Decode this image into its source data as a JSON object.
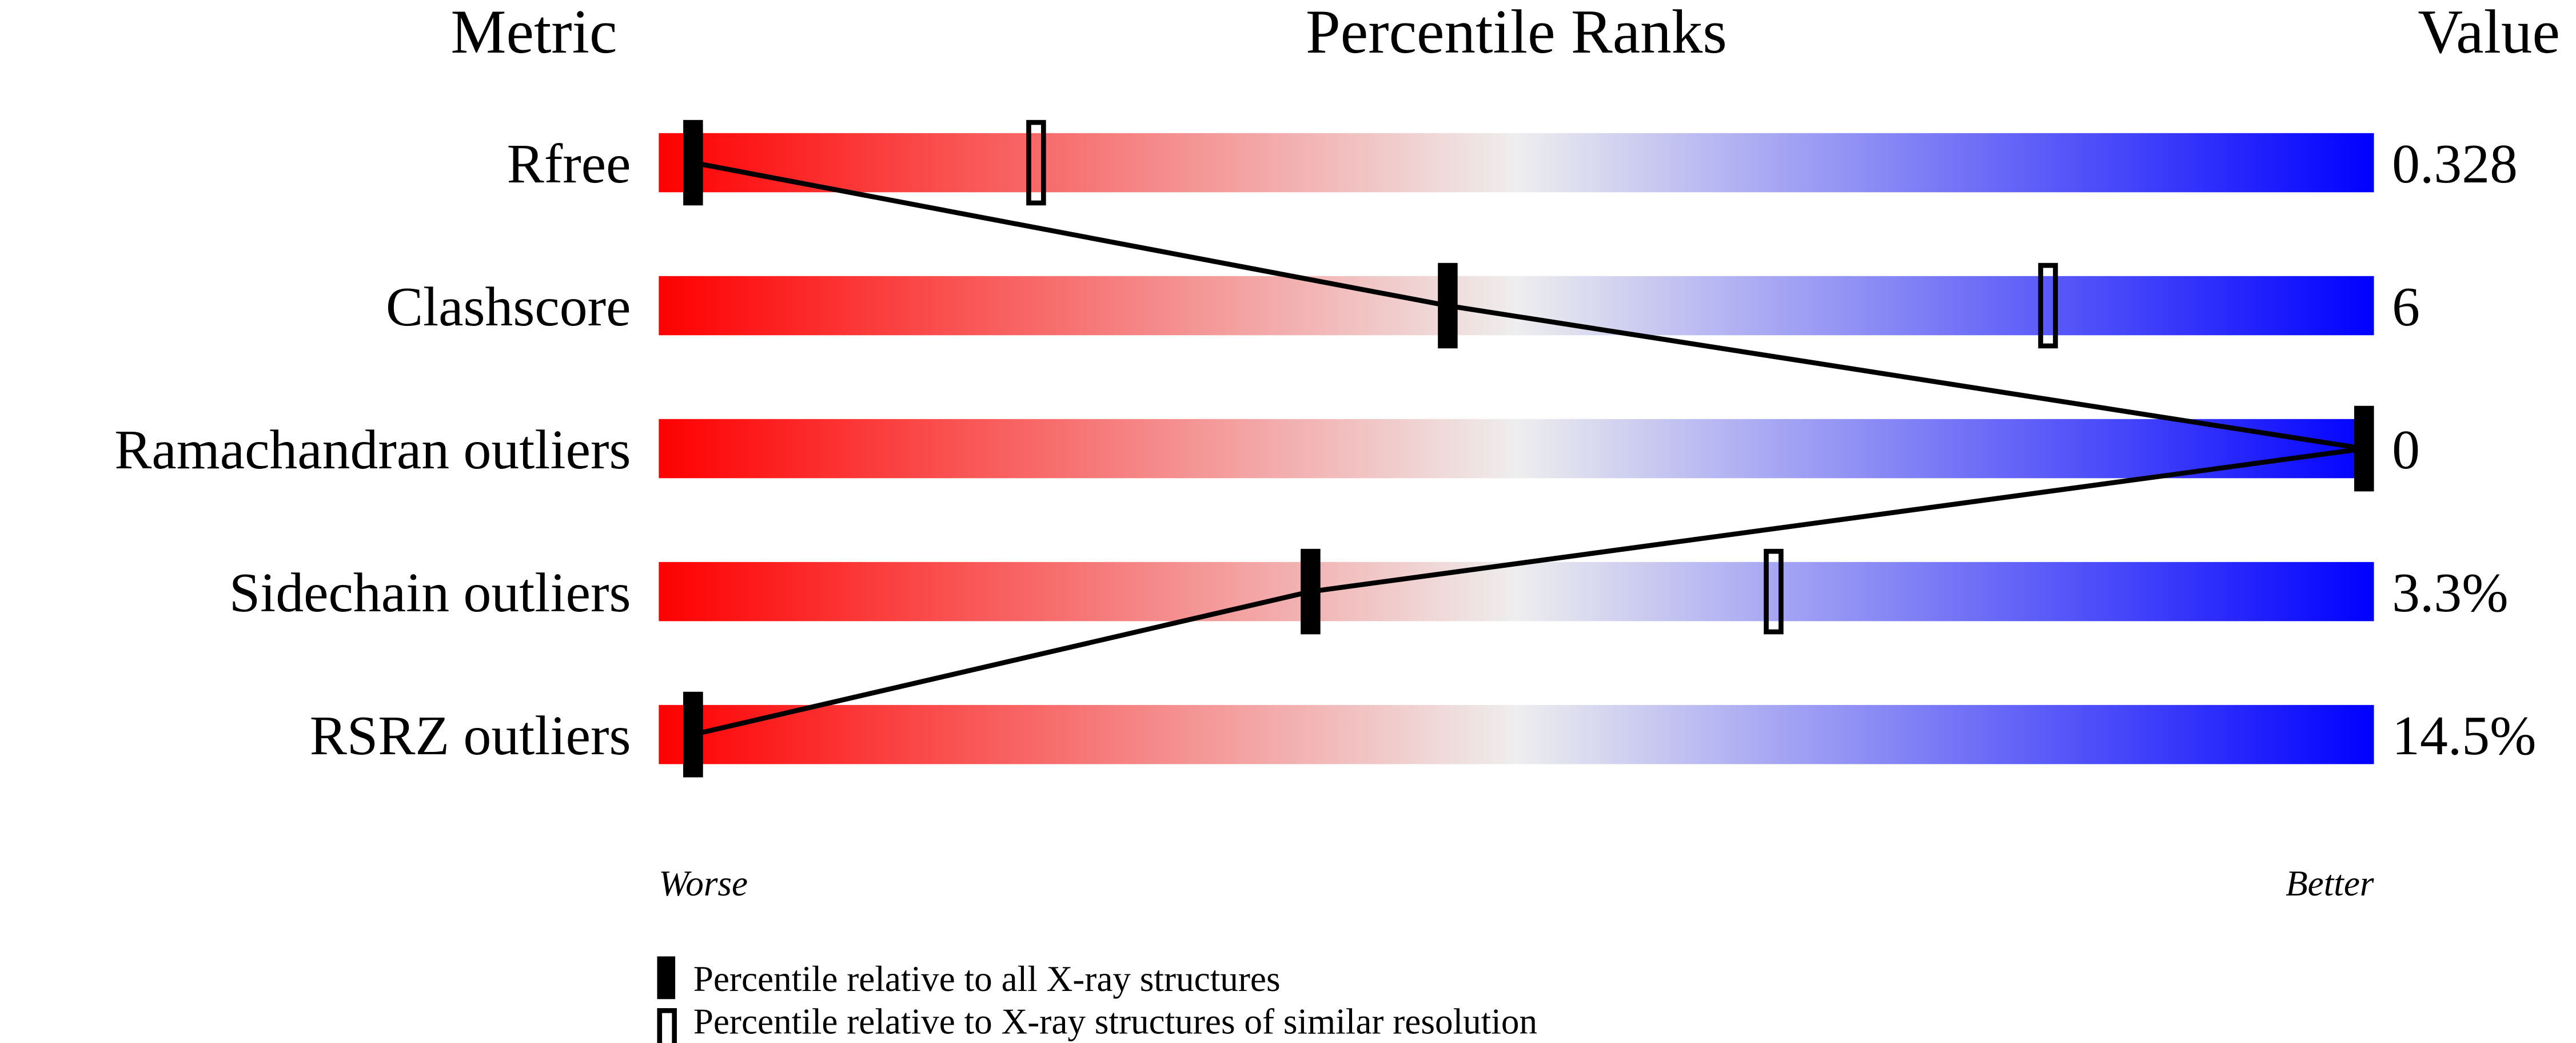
{
  "chart_data": {
    "type": "table",
    "header": {
      "metric": "Metric",
      "ranks": "Percentile Ranks",
      "value": "Value"
    },
    "axis": {
      "worse": "Worse",
      "better": "Better",
      "range": [
        0,
        100
      ]
    },
    "colors": {
      "worse": "#ff0000",
      "middle": "#eeeeee",
      "better": "#0000ff",
      "marker": "#000000"
    },
    "rows": [
      {
        "metric": "Rfree",
        "value": "0.328",
        "percentile_all": 2,
        "percentile_similar": 22
      },
      {
        "metric": "Clashscore",
        "value": "6",
        "percentile_all": 46,
        "percentile_similar": 81
      },
      {
        "metric": "Ramachandran outliers",
        "value": "0",
        "percentile_all": 100,
        "percentile_similar": 100
      },
      {
        "metric": "Sidechain outliers",
        "value": "3.3%",
        "percentile_all": 38,
        "percentile_similar": 65
      },
      {
        "metric": "RSRZ outliers",
        "value": "14.5%",
        "percentile_all": 2,
        "percentile_similar": 2
      }
    ],
    "legend": [
      {
        "marker": "filled",
        "label": "Percentile relative to all X-ray structures"
      },
      {
        "marker": "hollow",
        "label": "Percentile relative to X-ray structures of similar resolution"
      }
    ]
  }
}
